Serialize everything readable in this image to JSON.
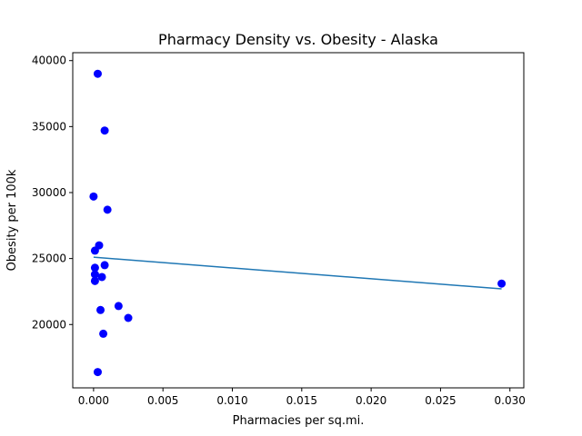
{
  "chart_data": {
    "type": "scatter",
    "title": "Pharmacy Density vs. Obesity - Alaska",
    "xlabel": "Pharmacies per sq.mi.",
    "ylabel": "Obesity per 100k",
    "xlim": [
      -0.0015,
      0.031
    ],
    "ylim": [
      15200,
      40600
    ],
    "x_ticks": [
      0.0,
      0.005,
      0.01,
      0.015,
      0.02,
      0.025,
      0.03
    ],
    "x_tick_labels": [
      "0.000",
      "0.005",
      "0.010",
      "0.015",
      "0.020",
      "0.025",
      "0.030"
    ],
    "y_ticks": [
      20000,
      25000,
      30000,
      35000,
      40000
    ],
    "y_tick_labels": [
      "20000",
      "25000",
      "30000",
      "35000",
      "40000"
    ],
    "grid": false,
    "points": [
      {
        "x": 0.0003,
        "y": 39000
      },
      {
        "x": 0.0008,
        "y": 34700
      },
      {
        "x": 0.0,
        "y": 29700
      },
      {
        "x": 0.001,
        "y": 28700
      },
      {
        "x": 0.0004,
        "y": 26000
      },
      {
        "x": 0.0001,
        "y": 25600
      },
      {
        "x": 0.0008,
        "y": 24500
      },
      {
        "x": 0.0001,
        "y": 24300
      },
      {
        "x": 0.0001,
        "y": 23800
      },
      {
        "x": 0.0006,
        "y": 23600
      },
      {
        "x": 0.0001,
        "y": 23300
      },
      {
        "x": 0.0018,
        "y": 21400
      },
      {
        "x": 0.0005,
        "y": 21100
      },
      {
        "x": 0.0025,
        "y": 20500
      },
      {
        "x": 0.0007,
        "y": 19300
      },
      {
        "x": 0.0003,
        "y": 16400
      },
      {
        "x": 0.0294,
        "y": 23100
      }
    ],
    "trendline": {
      "x": [
        0.0,
        0.0294
      ],
      "y": [
        25100,
        22700
      ]
    },
    "point_color": "#0000ff",
    "line_color": "#1f77b4"
  }
}
